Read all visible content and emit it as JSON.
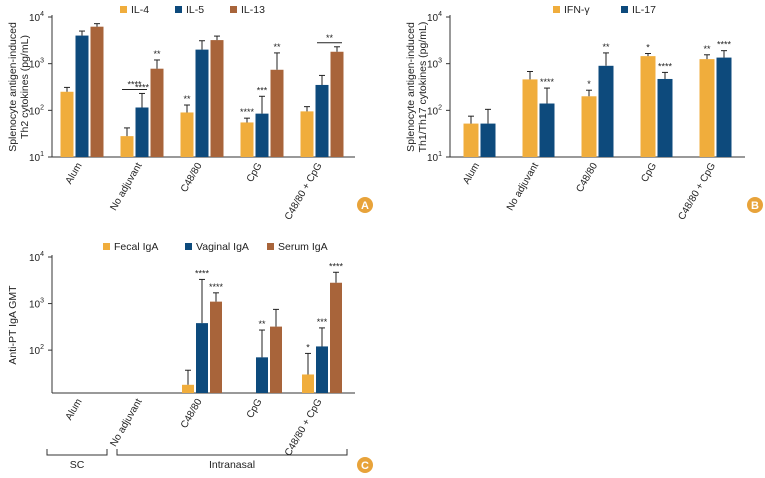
{
  "colors": {
    "orange": "#f0ad3c",
    "navy": "#0d4a7c",
    "brown": "#a8643a",
    "badge": "#e8a33a"
  },
  "chart_data": [
    {
      "panel": "A",
      "type": "bar",
      "scale": "log",
      "ylabel": [
        "Splenocyte antigen-induced",
        "Th2 cytokines (pg/mL)"
      ],
      "yticks": [
        {
          "value": 10,
          "base": "10",
          "exp": "1"
        },
        {
          "value": 100,
          "base": "10",
          "exp": "2"
        },
        {
          "value": 1000,
          "base": "10",
          "exp": "3"
        },
        {
          "value": 10000,
          "base": "10",
          "exp": "4"
        }
      ],
      "ylim": [
        10,
        10000
      ],
      "categories": [
        "Alum",
        "No adjuvant",
        "C48/80",
        "CpG",
        "C48/80 + CpG"
      ],
      "series": [
        {
          "name": "IL-4",
          "color": "#f0ad3c",
          "values": [
            250,
            28,
            90,
            55,
            95
          ],
          "err_upper": [
            310,
            42,
            130,
            68,
            120
          ],
          "sig": [
            "",
            "",
            "**",
            "****",
            ""
          ]
        },
        {
          "name": "IL-5",
          "color": "#0d4a7c",
          "values": [
            4000,
            115,
            2000,
            85,
            350
          ],
          "err_upper": [
            5000,
            230,
            3100,
            200,
            560
          ],
          "sig": [
            "",
            "****",
            "",
            "***",
            ""
          ]
        },
        {
          "name": "IL-13",
          "color": "#a8643a",
          "values": [
            6200,
            780,
            3200,
            740,
            1800
          ],
          "err_upper": [
            7200,
            1200,
            3900,
            1700,
            2300
          ],
          "sig": [
            "",
            "**",
            "",
            "**",
            ""
          ]
        }
      ],
      "brackets": [
        {
          "category": 1,
          "from": 0,
          "to": 1,
          "label": "****"
        },
        {
          "category": 4,
          "from": 1,
          "to": 2,
          "label": "**"
        }
      ]
    },
    {
      "panel": "B",
      "type": "bar",
      "scale": "log",
      "ylabel": [
        "Splenocyte antigen-induced",
        "Th1/Th17 cytokines (pg/mL)"
      ],
      "yticks": [
        {
          "value": 10,
          "base": "10",
          "exp": "1"
        },
        {
          "value": 100,
          "base": "10",
          "exp": "2"
        },
        {
          "value": 1000,
          "base": "10",
          "exp": "3"
        },
        {
          "value": 10000,
          "base": "10",
          "exp": "4"
        }
      ],
      "ylim": [
        10,
        10000
      ],
      "categories": [
        "Alum",
        "No adjuvant",
        "C48/80",
        "CpG",
        "C48/80 + CpG"
      ],
      "series": [
        {
          "name": "IFN-γ",
          "color": "#f0ad3c",
          "values": [
            52,
            460,
            200,
            1450,
            1250
          ],
          "err_upper": [
            75,
            680,
            270,
            1650,
            1550
          ],
          "sig": [
            "",
            "",
            "*",
            "*",
            "**"
          ]
        },
        {
          "name": "IL-17",
          "color": "#0d4a7c",
          "values": [
            52,
            140,
            900,
            470,
            1350
          ],
          "err_upper": [
            105,
            300,
            1700,
            650,
            1900
          ],
          "sig": [
            "",
            "****",
            "**",
            "****",
            "****"
          ]
        }
      ],
      "brackets": []
    },
    {
      "panel": "C",
      "type": "bar",
      "scale": "log",
      "ylabel": [
        "Anti-PT IgA GMT"
      ],
      "yticks": [
        {
          "value": 100,
          "base": "10",
          "exp": "2"
        },
        {
          "value": 1000,
          "base": "10",
          "exp": "3"
        },
        {
          "value": 10000,
          "base": "10",
          "exp": "4"
        }
      ],
      "ylim": [
        12,
        10000
      ],
      "categories": [
        "Alum",
        "No adjuvant",
        "C48/80",
        "CpG",
        "C48/80 + CpG"
      ],
      "series": [
        {
          "name": "Fecal IgA",
          "color": "#f0ad3c",
          "values": [
            null,
            null,
            18,
            null,
            30
          ],
          "err_upper": [
            null,
            null,
            37,
            null,
            85
          ],
          "sig": [
            "",
            "",
            "",
            "",
            "*"
          ]
        },
        {
          "name": "Vaginal IgA",
          "color": "#0d4a7c",
          "values": [
            null,
            null,
            380,
            70,
            120
          ],
          "err_upper": [
            null,
            null,
            3300,
            270,
            300
          ],
          "sig": [
            "",
            "",
            "****",
            "**",
            "***"
          ]
        },
        {
          "name": "Serum IgA",
          "color": "#a8643a",
          "values": [
            null,
            null,
            1100,
            320,
            2800
          ],
          "err_upper": [
            null,
            null,
            1700,
            750,
            4700
          ],
          "sig": [
            "",
            "",
            "****",
            "",
            "****"
          ]
        }
      ],
      "brackets": [],
      "groups": [
        {
          "label": "SC",
          "from": 0,
          "to": 0
        },
        {
          "label": "Intranasal",
          "from": 1,
          "to": 4
        }
      ]
    }
  ]
}
